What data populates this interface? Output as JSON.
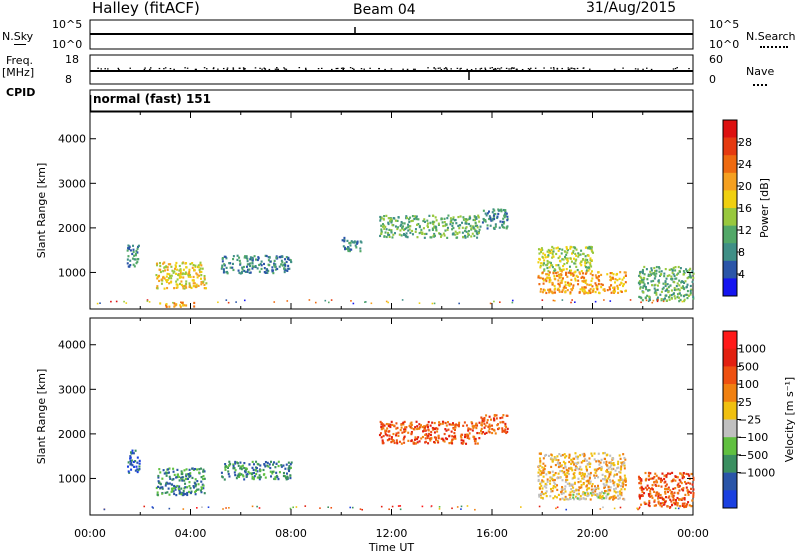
{
  "header": {
    "station": "Halley (fitACF)",
    "beam": "Beam 04",
    "date": "31/Aug/2015"
  },
  "strip": {
    "nsky_label": "N.Sky",
    "nsky_ticks": [
      "10^5",
      "10^0"
    ],
    "nsearch_label": "N.Search",
    "nsearch_ticks": [
      "10^5",
      "10^0"
    ],
    "freq_label_line1": "Freq.",
    "freq_label_line2": "[MHz]",
    "freq_ticks": [
      "18",
      "8"
    ],
    "nave_label": "Nave",
    "nave_ticks": [
      "60",
      "0"
    ],
    "cpid_label": "CPID",
    "cpid_value": "normal (fast) 151"
  },
  "chart_data": [
    {
      "type": "heatmap",
      "parameter": "Power",
      "ylabel": "Slant Range [km]",
      "ylim": [
        180,
        4600
      ],
      "yticks": [
        1000,
        2000,
        3000,
        4000
      ],
      "xlim_hours": [
        0,
        24
      ],
      "colorbar": {
        "label": "Power [dB]",
        "range": [
          0,
          32
        ],
        "ticks": [
          "4",
          "8",
          "12",
          "16",
          "20",
          "24",
          "28"
        ],
        "colors": [
          "#1515f0",
          "#2a55a8",
          "#3f8f86",
          "#52a868",
          "#98c83e",
          "#f0d010",
          "#f5a020",
          "#ee6a10",
          "#e53a10",
          "#dd1010"
        ]
      },
      "regions": [
        {
          "t": [
            1.45,
            1.95
          ],
          "r": [
            1150,
            1650
          ],
          "level": 8
        },
        {
          "t": [
            2.6,
            4.6
          ],
          "r": [
            650,
            1250
          ],
          "level": 16
        },
        {
          "t": [
            2.7,
            4.2
          ],
          "r": [
            250,
            350
          ],
          "level": 20
        },
        {
          "t": [
            5.2,
            8.0
          ],
          "r": [
            1000,
            1400
          ],
          "level": 8
        },
        {
          "t": [
            10.0,
            10.8
          ],
          "r": [
            1500,
            1800
          ],
          "level": 8
        },
        {
          "t": [
            11.5,
            15.5
          ],
          "r": [
            1800,
            2300
          ],
          "level": 12
        },
        {
          "t": [
            15.5,
            16.6
          ],
          "r": [
            2000,
            2450
          ],
          "level": 8
        },
        {
          "t": [
            17.8,
            20.0
          ],
          "r": [
            1050,
            1600
          ],
          "level": 14
        },
        {
          "t": [
            17.8,
            21.3
          ],
          "r": [
            550,
            1050
          ],
          "level": 22
        },
        {
          "t": [
            21.8,
            24.0
          ],
          "r": [
            380,
            1150
          ],
          "level": 10
        }
      ]
    },
    {
      "type": "heatmap",
      "parameter": "Velocity",
      "ylabel": "Slant Range [km]",
      "ylim": [
        180,
        4600
      ],
      "yticks": [
        1000,
        2000,
        3000,
        4000
      ],
      "xlim_hours": [
        0,
        24
      ],
      "colorbar": {
        "label": "Velocity [m s⁻¹]",
        "ticks": [
          "1000",
          "500",
          "100",
          "25",
          "−25",
          "−100",
          "−500",
          "−1000"
        ],
        "colors": [
          "#1a40e0",
          "#2a55a8",
          "#3a8f60",
          "#60c040",
          "#c0c0c0",
          "#f0c010",
          "#f08010",
          "#ee5010",
          "#e22010",
          "#ff1a1a"
        ]
      },
      "regions": [
        {
          "t": [
            1.45,
            1.95
          ],
          "r": [
            1150,
            1650
          ],
          "level": "500"
        },
        {
          "t": [
            2.6,
            4.6
          ],
          "r": [
            650,
            1250
          ],
          "level": "100"
        },
        {
          "t": [
            5.2,
            8.0
          ],
          "r": [
            1000,
            1400
          ],
          "level": "100"
        },
        {
          "t": [
            11.5,
            15.5
          ],
          "r": [
            1800,
            2300
          ],
          "level": "-500"
        },
        {
          "t": [
            15.5,
            16.6
          ],
          "r": [
            2000,
            2450
          ],
          "level": "-500"
        },
        {
          "t": [
            17.8,
            21.3
          ],
          "r": [
            550,
            1600
          ],
          "level": "-100"
        },
        {
          "t": [
            19.0,
            20.6
          ],
          "r": [
            550,
            700
          ],
          "level": "25"
        },
        {
          "t": [
            21.8,
            24.0
          ],
          "r": [
            380,
            1150
          ],
          "level": "-500"
        }
      ]
    }
  ],
  "xaxis": {
    "label": "Time UT",
    "ticks": [
      "00:00",
      "04:00",
      "08:00",
      "12:00",
      "16:00",
      "20:00",
      "00:00"
    ]
  },
  "colors": {
    "frame": "#000000",
    "background": "#ffffff"
  }
}
